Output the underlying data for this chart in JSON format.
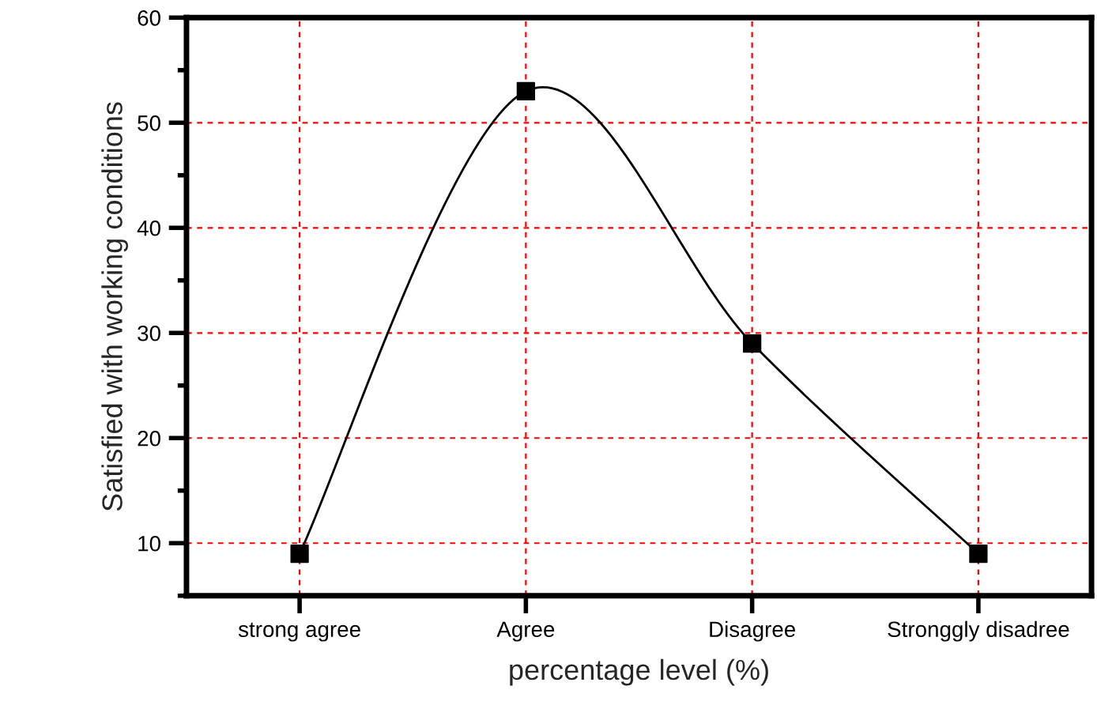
{
  "chart_data": {
    "type": "line",
    "xlabel": "percentage level (%)",
    "ylabel": "Satisfied with working conditions",
    "categories": [
      "strong agree",
      "Agree",
      "Disagree",
      "Stronggly disadree"
    ],
    "series": [
      {
        "color": "#000000",
        "values": [
          9,
          53,
          29,
          9
        ]
      }
    ],
    "ylim": [
      5,
      60
    ],
    "yticks": [
      {
        "value": 5,
        "label": null
      },
      10,
      {
        "value": 15,
        "label": null
      },
      20,
      {
        "value": 25,
        "label": null
      },
      30,
      {
        "value": 35,
        "label": null
      },
      40,
      {
        "value": 45,
        "label": null
      },
      50,
      {
        "value": 55,
        "label": null
      },
      60
    ],
    "grid": true,
    "marker": "square",
    "line_style": "solid",
    "legend": false
  }
}
